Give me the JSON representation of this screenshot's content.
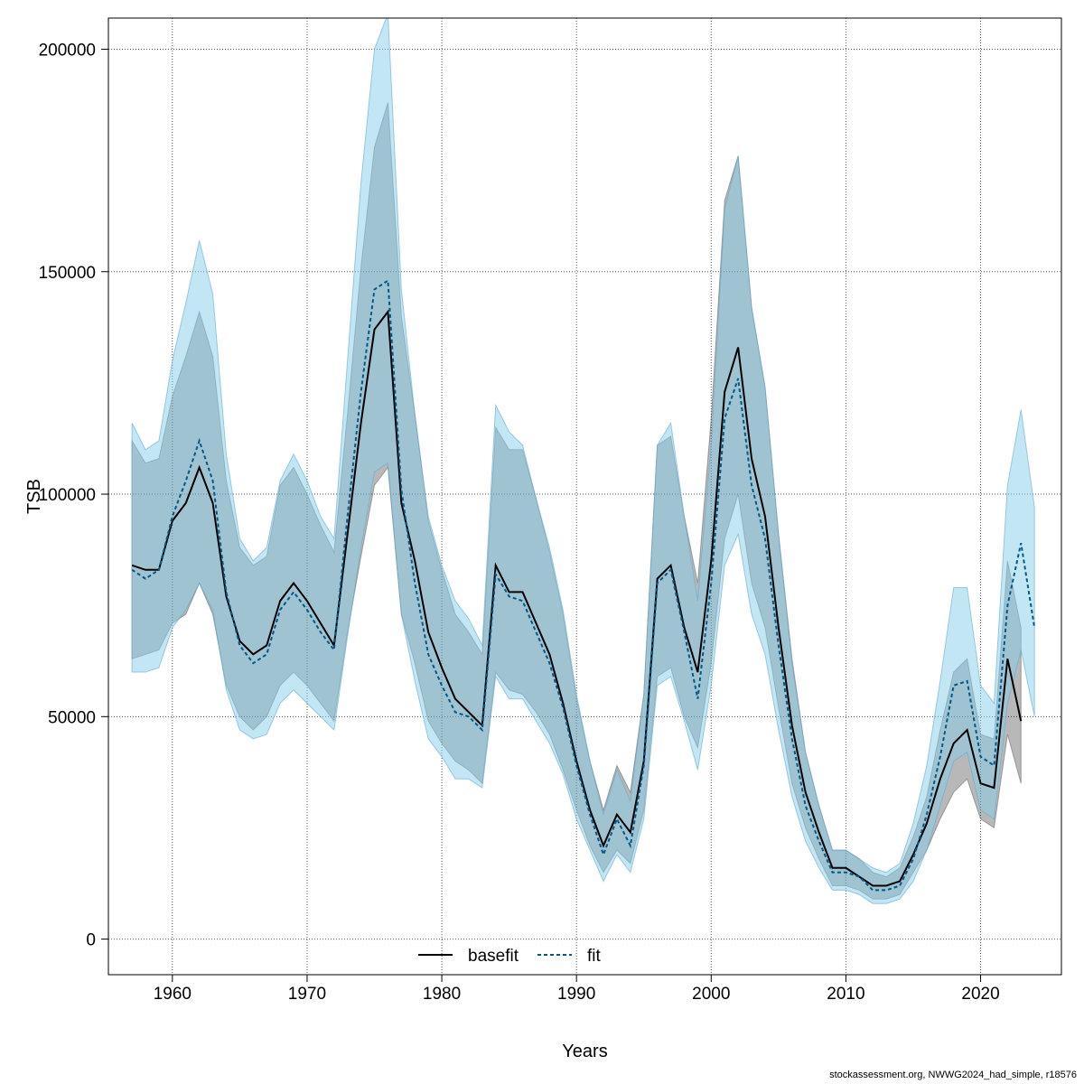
{
  "footer_text": "stockassessment.org, NWWG2024_had_simple, r18576",
  "chart_data": {
    "type": "line",
    "xlabel": "Years",
    "ylabel": "TSB",
    "xlim": [
      1955.25,
      2026.0
    ],
    "ylim": [
      -8000,
      207000
    ],
    "x_ticks": [
      1960,
      1970,
      1980,
      1990,
      2000,
      2010,
      2020
    ],
    "y_ticks": [
      0,
      50000,
      100000,
      150000,
      200000
    ],
    "grid": true,
    "legend_position": "bottom",
    "colors": {
      "basefit_line": "#000000",
      "basefit_band": "rgba(0,0,0,0.28)",
      "fit_line": "#00598a",
      "fit_band": "rgba(135,206,235,0.5)"
    },
    "series": [
      {
        "name": "basefit",
        "style": "solid",
        "x": [
          1957,
          1958,
          1959,
          1960,
          1961,
          1962,
          1963,
          1964,
          1965,
          1966,
          1967,
          1968,
          1969,
          1970,
          1971,
          1972,
          1973,
          1974,
          1975,
          1976,
          1977,
          1978,
          1979,
          1980,
          1981,
          1982,
          1983,
          1984,
          1985,
          1986,
          1987,
          1988,
          1989,
          1990,
          1991,
          1992,
          1993,
          1994,
          1995,
          1996,
          1997,
          1998,
          1999,
          2000,
          2001,
          2002,
          2003,
          2004,
          2005,
          2006,
          2007,
          2008,
          2009,
          2010,
          2011,
          2012,
          2013,
          2014,
          2015,
          2016,
          2017,
          2018,
          2019,
          2020,
          2021,
          2022,
          2023
        ],
        "values": [
          84000,
          83000,
          83000,
          94000,
          98000,
          106000,
          98000,
          77000,
          67000,
          64000,
          66000,
          76000,
          80000,
          76000,
          71000,
          66000,
          91000,
          116000,
          137000,
          141000,
          98000,
          85000,
          69000,
          61000,
          54000,
          51000,
          48000,
          84000,
          78000,
          78000,
          71000,
          64000,
          53000,
          40000,
          29000,
          21000,
          28000,
          24000,
          40000,
          81000,
          84000,
          70000,
          60000,
          85000,
          123000,
          133000,
          108000,
          95000,
          70000,
          48000,
          33000,
          24000,
          16000,
          16000,
          14000,
          12000,
          12000,
          13000,
          19000,
          26000,
          36000,
          44000,
          47000,
          35000,
          34000,
          63000,
          49000
        ],
        "upper": [
          112000,
          107000,
          108000,
          122000,
          131000,
          141000,
          131000,
          103000,
          88000,
          84000,
          86000,
          102000,
          106000,
          100000,
          93000,
          87000,
          118000,
          151000,
          178000,
          188000,
          140000,
          118000,
          94000,
          83000,
          73000,
          69000,
          64000,
          115000,
          110000,
          110000,
          99000,
          87000,
          73000,
          54000,
          40000,
          29000,
          39000,
          33000,
          55000,
          111000,
          113000,
          95000,
          80000,
          117000,
          166000,
          176000,
          142000,
          124000,
          91000,
          63000,
          42000,
          30000,
          20000,
          20000,
          18000,
          15000,
          14000,
          16000,
          23000,
          32000,
          47000,
          60000,
          63000,
          46000,
          45000,
          85000,
          70000
        ],
        "lower": [
          63000,
          64000,
          65000,
          71000,
          73000,
          80000,
          73000,
          57000,
          50000,
          47000,
          50000,
          57000,
          60000,
          57000,
          53000,
          49000,
          69000,
          86000,
          102000,
          106000,
          73000,
          62000,
          49000,
          44000,
          40000,
          38000,
          35000,
          60000,
          56000,
          55000,
          51000,
          46000,
          38000,
          29000,
          21000,
          15000,
          20000,
          17000,
          29000,
          59000,
          61000,
          50000,
          43000,
          62000,
          90000,
          100000,
          80000,
          70000,
          52000,
          35000,
          25000,
          18000,
          12000,
          12000,
          11000,
          9000,
          9000,
          10000,
          15000,
          20000,
          27000,
          33000,
          36000,
          27000,
          25000,
          46000,
          35000
        ]
      },
      {
        "name": "fit",
        "style": "dashed",
        "x": [
          1957,
          1958,
          1959,
          1960,
          1961,
          1962,
          1963,
          1964,
          1965,
          1966,
          1967,
          1968,
          1969,
          1970,
          1971,
          1972,
          1973,
          1974,
          1975,
          1976,
          1977,
          1978,
          1979,
          1980,
          1981,
          1982,
          1983,
          1984,
          1985,
          1986,
          1987,
          1988,
          1989,
          1990,
          1991,
          1992,
          1993,
          1994,
          1995,
          1996,
          1997,
          1998,
          1999,
          2000,
          2001,
          2002,
          2003,
          2004,
          2005,
          2006,
          2007,
          2008,
          2009,
          2010,
          2011,
          2012,
          2013,
          2014,
          2015,
          2016,
          2017,
          2018,
          2019,
          2020,
          2021,
          2022,
          2023,
          2024
        ],
        "values": [
          83000,
          81000,
          83000,
          95000,
          103000,
          112000,
          103000,
          78000,
          66000,
          62000,
          64000,
          74000,
          78000,
          74000,
          69000,
          65000,
          95000,
          123000,
          146000,
          148000,
          101000,
          80000,
          64000,
          57000,
          51000,
          50000,
          47000,
          82000,
          77000,
          76000,
          69000,
          62000,
          52000,
          39000,
          28000,
          19000,
          27000,
          21000,
          39000,
          80000,
          83000,
          69000,
          54000,
          80000,
          117000,
          126000,
          102000,
          90000,
          66000,
          45000,
          30000,
          22000,
          15000,
          15000,
          14000,
          11000,
          11000,
          12000,
          18000,
          28000,
          41000,
          57000,
          58000,
          41000,
          39000,
          75000,
          89000,
          70000
        ],
        "upper": [
          116000,
          110000,
          112000,
          130000,
          143000,
          157000,
          145000,
          109000,
          90000,
          85000,
          88000,
          103000,
          109000,
          103000,
          95000,
          90000,
          130000,
          170000,
          200000,
          208000,
          146000,
          118000,
          95000,
          84000,
          76000,
          72000,
          66000,
          120000,
          114000,
          111000,
          99000,
          88000,
          74000,
          55000,
          40000,
          28000,
          38000,
          31000,
          55000,
          111000,
          116000,
          95000,
          76000,
          111000,
          164000,
          176000,
          142000,
          124000,
          91000,
          62000,
          42000,
          30000,
          20000,
          20000,
          18000,
          16000,
          15000,
          17000,
          26000,
          39000,
          58000,
          79000,
          79000,
          57000,
          53000,
          102000,
          119000,
          97000
        ],
        "lower": [
          60000,
          60000,
          61000,
          70000,
          74000,
          80000,
          74000,
          56000,
          47000,
          45000,
          46000,
          53000,
          56000,
          53000,
          50000,
          47000,
          68000,
          88000,
          105000,
          107000,
          73000,
          58000,
          45000,
          41000,
          36000,
          36000,
          34000,
          59000,
          54000,
          54000,
          49000,
          44000,
          37000,
          27000,
          20000,
          13000,
          19000,
          15000,
          27000,
          57000,
          59000,
          49000,
          38000,
          57000,
          84000,
          91000,
          73000,
          64000,
          47000,
          32000,
          22000,
          16000,
          11000,
          11000,
          10000,
          8000,
          8000,
          9000,
          13000,
          20000,
          30000,
          40000,
          42000,
          29000,
          27000,
          53000,
          65000,
          50000
        ]
      }
    ]
  }
}
